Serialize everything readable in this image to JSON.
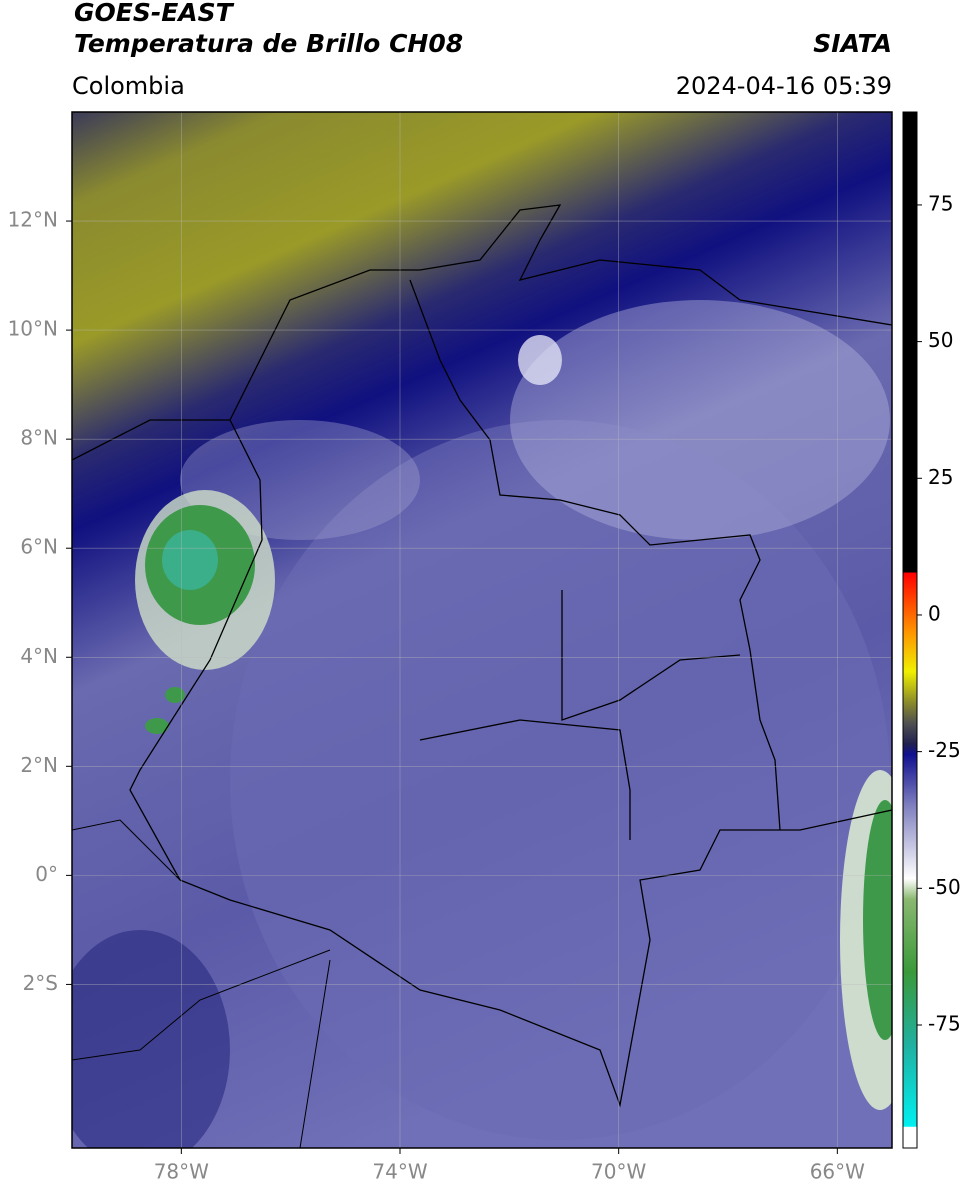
{
  "header": {
    "satellite": "GOES-EAST",
    "product": "Temperatura de Brillo CH08",
    "source": "SIATA",
    "region": "Colombia",
    "datetime": "2024-04-16 05:39"
  },
  "map": {
    "xlim": [
      -80,
      -65
    ],
    "ylim": [
      -5,
      14
    ],
    "xticks": [
      {
        "value": -78,
        "label": "78°W"
      },
      {
        "value": -74,
        "label": "74°W"
      },
      {
        "value": -70,
        "label": "70°W"
      },
      {
        "value": -66,
        "label": "66°W"
      }
    ],
    "yticks": [
      {
        "value": 12,
        "label": "12°N"
      },
      {
        "value": 10,
        "label": "10°N"
      },
      {
        "value": 8,
        "label": "8°N"
      },
      {
        "value": 6,
        "label": "6°N"
      },
      {
        "value": 4,
        "label": "4°N"
      },
      {
        "value": 2,
        "label": "2°N"
      },
      {
        "value": 0,
        "label": "0°"
      },
      {
        "value": -2,
        "label": "2°S"
      }
    ],
    "grid": true
  },
  "colorbar": {
    "lim": [
      -97.5,
      92
    ],
    "ticks": [
      75,
      50,
      25,
      0,
      -25,
      -50,
      -75
    ]
  }
}
